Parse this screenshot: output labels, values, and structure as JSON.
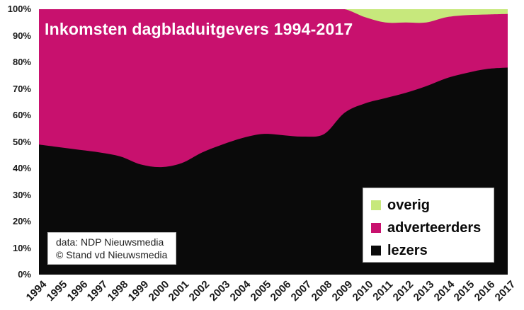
{
  "title": "Inkomsten dagbladuitgevers 1994-2017",
  "source_box": {
    "line1": "data: NDP Nieuwsmedia",
    "line2": "© Stand vd Nieuwsmedia"
  },
  "legend": {
    "position": "bottom-right-inside",
    "items": [
      {
        "label": "overig",
        "color": "#C7E87C"
      },
      {
        "label": "adverteerders",
        "color": "#C8116E"
      },
      {
        "label": "lezers",
        "color": "#0A0A0A"
      }
    ]
  },
  "axes": {
    "y_ticks": [
      "100%",
      "90%",
      "80%",
      "70%",
      "60%",
      "50%",
      "40%",
      "30%",
      "20%",
      "10%",
      "0%"
    ],
    "x_ticks": [
      "1994",
      "1995",
      "1996",
      "1997",
      "1998",
      "1999",
      "2000",
      "2001",
      "2002",
      "2003",
      "2004",
      "2005",
      "2006",
      "2007",
      "2008",
      "2009",
      "2010",
      "2011",
      "2012",
      "2013",
      "2014",
      "2015",
      "2016",
      "2017"
    ]
  },
  "chart_data": {
    "type": "area",
    "stacked": true,
    "title": "Inkomsten dagbladuitgevers 1994-2017",
    "xlabel": "",
    "ylabel": "",
    "units": "percent",
    "ylim": [
      0,
      100
    ],
    "grid": false,
    "legend_position": "bottom-right-inside",
    "x": [
      1994,
      1995,
      1996,
      1997,
      1998,
      1999,
      2000,
      2001,
      2002,
      2003,
      2004,
      2005,
      2006,
      2007,
      2008,
      2009,
      2010,
      2011,
      2012,
      2013,
      2014,
      2015,
      2016,
      2017
    ],
    "series": [
      {
        "name": "lezers",
        "color": "#0A0A0A",
        "values": [
          49,
          48,
          47,
          46,
          44.5,
          41.5,
          40.5,
          42,
          46,
          49,
          51.5,
          53,
          52.5,
          52,
          53,
          61,
          64.5,
          66.5,
          68.5,
          71,
          74,
          76,
          77.5,
          78
        ]
      },
      {
        "name": "adverteerders",
        "color": "#C8116E",
        "values": [
          51,
          52,
          53,
          54,
          55.5,
          58.5,
          59.5,
          58,
          54,
          51,
          48.5,
          47,
          47.5,
          48,
          47,
          39,
          32.5,
          28.5,
          26.5,
          24,
          23,
          21.75,
          20.5,
          20.2
        ]
      },
      {
        "name": "overig",
        "color": "#C7E87C",
        "values": [
          0,
          0,
          0,
          0,
          0,
          0,
          0,
          0,
          0,
          0,
          0,
          0,
          0,
          0,
          0,
          0,
          3,
          5,
          5,
          5,
          3,
          2.25,
          2,
          1.8
        ]
      }
    ]
  }
}
